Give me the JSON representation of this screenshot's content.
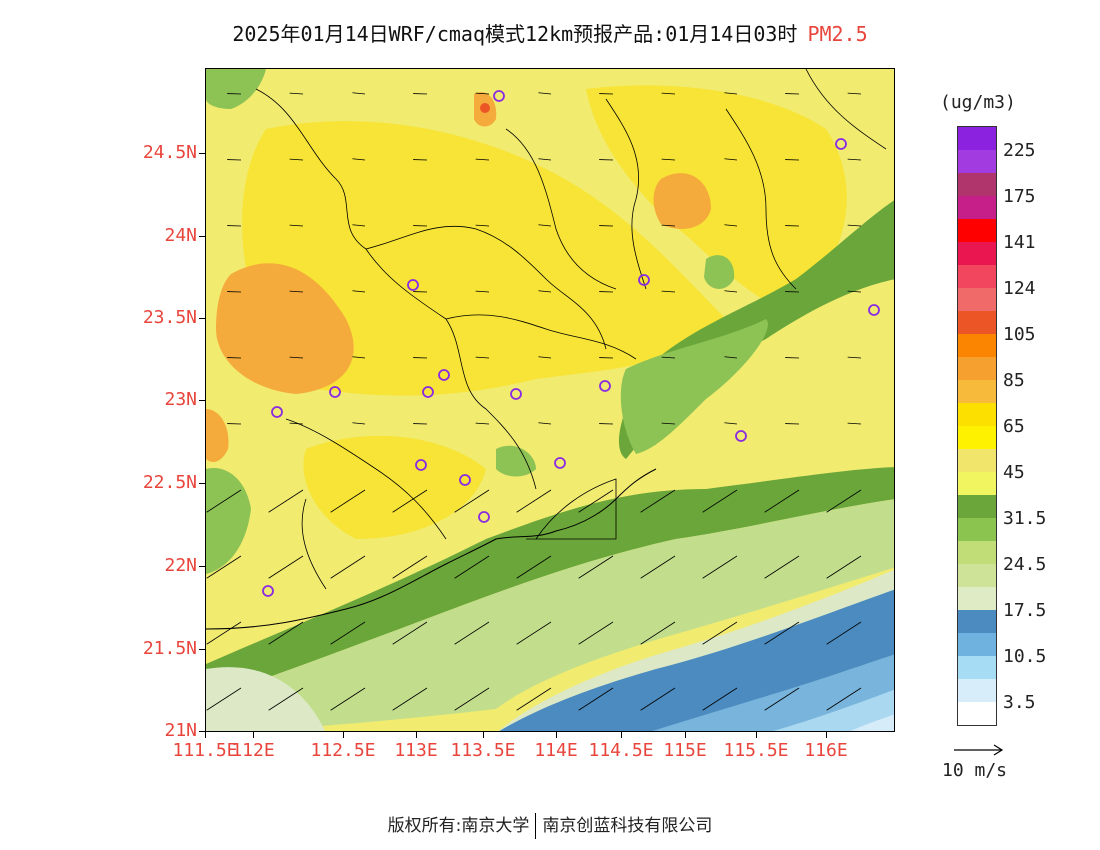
{
  "header": {
    "title": "2025年01月14日WRF/cmaq模式12km预报产品:01月14日03时",
    "species": "PM2.5"
  },
  "map": {
    "lat_labels": [
      "24.5N",
      "24N",
      "23.5N",
      "23N",
      "22.5N",
      "22N",
      "21.5N",
      "21N"
    ],
    "lon_labels": [
      "111.5E",
      "112E",
      "112.5E",
      "113E",
      "113.5E",
      "114E",
      "114.5E",
      "115E",
      "115.5E",
      "116E"
    ],
    "colors": {
      "very_high": "#f5ab3c",
      "high": "#f7e436",
      "mid_yellow": "#f1eb70",
      "green_dark": "#6aa63a",
      "green_mid": "#8dc354",
      "green_light": "#c2de8c",
      "pale_green": "#dde9c6",
      "blue_dark": "#4b8bbf",
      "blue_mid": "#78b4db",
      "blue_light": "#a9d8f0",
      "blue_pale": "#d6ecf8",
      "station": "#8a2be2"
    }
  },
  "legend": {
    "unit": "(ug/m3)",
    "labels": [
      "225",
      "175",
      "141",
      "124",
      "105",
      "85",
      "65",
      "45",
      "31.5",
      "24.5",
      "17.5",
      "10.5",
      "3.5"
    ],
    "colors": [
      "#8b22e0",
      "#a23be0",
      "#b0356c",
      "#c71f8a",
      "#ff0000",
      "#ea1650",
      "#f1465e",
      "#f06a6a",
      "#ec5626",
      "#fb8500",
      "#f5a02f",
      "#f8ba3b",
      "#fbe000",
      "#fff200",
      "#f1e56c",
      "#f0f560",
      "#6aa63a",
      "#8cc450",
      "#c0dd78",
      "#cfe398",
      "#dfebc5",
      "#4b8bbf",
      "#6fb1df",
      "#a6dcf4",
      "#d7eefa",
      "#ffffff"
    ],
    "wind_ref_label": "10 m/s"
  },
  "footer": {
    "copyright": "版权所有:南京大学",
    "company": "南京创蓝科技有限公司"
  }
}
